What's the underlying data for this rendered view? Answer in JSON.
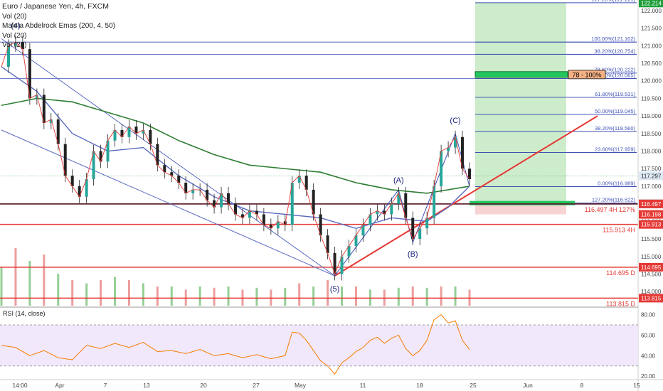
{
  "chart_data": {
    "type": "line",
    "title": "Euro / Japanese Yen, 4h, FXCM",
    "indicators": [
      "Vol (20)",
      "Maleta Abdelrock Emas (200, 4, 50)",
      "Vol (20)",
      "Vol (20)"
    ],
    "price_axis": {
      "range": [
        113.6,
        122.3
      ],
      "ticks": [
        "122.000",
        "121.500",
        "121.000",
        "120.500",
        "120.000",
        "119.500",
        "119.000",
        "118.500",
        "118.000",
        "117.500",
        "117.000",
        "116.500",
        "116.000",
        "115.500",
        "115.000",
        "114.500",
        "114.000"
      ],
      "tick_values": [
        122.0,
        121.5,
        121.0,
        120.5,
        120.0,
        119.5,
        119.0,
        118.5,
        118.0,
        117.5,
        117.0,
        116.5,
        116.0,
        115.5,
        115.0,
        114.5,
        114.0
      ]
    },
    "time_axis": {
      "labels": [
        "14:00",
        "Apr",
        "7",
        "13",
        "20",
        "27",
        "May",
        "11",
        "18",
        "25",
        "Jun",
        "8",
        "15"
      ]
    },
    "price_tags": [
      {
        "label": "122.214",
        "value": 122.214,
        "color": "#1e9e3a"
      },
      {
        "label": "117.297",
        "value": 117.297,
        "color": "#dde8f5"
      },
      {
        "label": "116.497",
        "value": 116.497,
        "color": "#4a4a4a"
      },
      {
        "label": "116.497",
        "value": 116.497,
        "color": "#e53935"
      },
      {
        "label": "116.198",
        "value": 116.198,
        "color": "#e53935"
      },
      {
        "label": "115.913",
        "value": 115.913,
        "color": "#e53935"
      },
      {
        "label": "114.695",
        "value": 114.695,
        "color": "#e53935"
      },
      {
        "label": "113.815",
        "value": 113.815,
        "color": "#e53935"
      }
    ],
    "horizontal_levels": [
      {
        "label": "116.497 4H 127%",
        "value": 116.497,
        "color": "#e53935"
      },
      {
        "label": "115.913 4H",
        "value": 115.913,
        "color": "#e53935"
      },
      {
        "label": "114.695 D",
        "value": 114.695,
        "color": "#e53935"
      },
      {
        "label": "113.815 D",
        "value": 113.815,
        "color": "#e53935"
      }
    ],
    "fib_levels": [
      {
        "label": "127.20%(122.221)",
        "value": 122.221
      },
      {
        "label": "100.00%(121.102)",
        "value": 121.102
      },
      {
        "label": "38.20%(120.754)",
        "value": 120.754
      },
      {
        "label": "78.60%(120.222)",
        "value": 120.222
      },
      {
        "label": "100.00%(120.065)",
        "value": 120.065
      },
      {
        "label": "61.80%(119.531)",
        "value": 119.531
      },
      {
        "label": "50.00%(119.045)",
        "value": 119.045
      },
      {
        "label": "38.20%(118.560)",
        "value": 118.56
      },
      {
        "label": "23.60%(117.959)",
        "value": 117.959
      },
      {
        "label": "0.00%(116.989)",
        "value": 116.989
      },
      {
        "label": "127.20%(116.522)",
        "value": 116.522
      }
    ],
    "target_box_label": "78 - 100%",
    "wave_labels": [
      {
        "label": "(4)",
        "x": 4,
        "price": 121.5
      },
      {
        "label": "(5)",
        "x": 94,
        "price": 114.0
      },
      {
        "label": "(A)",
        "x": 112,
        "price": 117.1
      },
      {
        "label": "(B)",
        "x": 116,
        "price": 115.0
      },
      {
        "label": "(C)",
        "x": 128,
        "price": 118.8
      }
    ],
    "price_series": [
      {
        "x": 0,
        "y": 120.4
      },
      {
        "x": 2,
        "y": 121.0
      },
      {
        "x": 4,
        "y": 121.1
      },
      {
        "x": 6,
        "y": 120.9
      },
      {
        "x": 8,
        "y": 119.5
      },
      {
        "x": 10,
        "y": 119.6
      },
      {
        "x": 12,
        "y": 118.8
      },
      {
        "x": 14,
        "y": 118.9
      },
      {
        "x": 16,
        "y": 118.2
      },
      {
        "x": 18,
        "y": 117.3
      },
      {
        "x": 20,
        "y": 117.0
      },
      {
        "x": 22,
        "y": 116.7
      },
      {
        "x": 24,
        "y": 117.2
      },
      {
        "x": 26,
        "y": 118.0
      },
      {
        "x": 28,
        "y": 117.7
      },
      {
        "x": 30,
        "y": 118.3
      },
      {
        "x": 32,
        "y": 118.6
      },
      {
        "x": 34,
        "y": 118.4
      },
      {
        "x": 36,
        "y": 118.7
      },
      {
        "x": 38,
        "y": 118.5
      },
      {
        "x": 40,
        "y": 118.6
      },
      {
        "x": 42,
        "y": 118.2
      },
      {
        "x": 44,
        "y": 117.6
      },
      {
        "x": 46,
        "y": 117.4
      },
      {
        "x": 48,
        "y": 117.3
      },
      {
        "x": 50,
        "y": 117.1
      },
      {
        "x": 52,
        "y": 116.8
      },
      {
        "x": 54,
        "y": 116.9
      },
      {
        "x": 56,
        "y": 116.9
      },
      {
        "x": 58,
        "y": 116.6
      },
      {
        "x": 60,
        "y": 116.4
      },
      {
        "x": 62,
        "y": 116.8
      },
      {
        "x": 64,
        "y": 116.5
      },
      {
        "x": 66,
        "y": 116.2
      },
      {
        "x": 68,
        "y": 116.1
      },
      {
        "x": 70,
        "y": 116.3
      },
      {
        "x": 72,
        "y": 116.2
      },
      {
        "x": 74,
        "y": 115.9
      },
      {
        "x": 76,
        "y": 115.8
      },
      {
        "x": 78,
        "y": 116.0
      },
      {
        "x": 80,
        "y": 115.9
      },
      {
        "x": 82,
        "y": 117.1
      },
      {
        "x": 84,
        "y": 117.3
      },
      {
        "x": 86,
        "y": 116.9
      },
      {
        "x": 88,
        "y": 116.2
      },
      {
        "x": 90,
        "y": 115.6
      },
      {
        "x": 92,
        "y": 115.1
      },
      {
        "x": 94,
        "y": 114.5
      },
      {
        "x": 96,
        "y": 115.0
      },
      {
        "x": 98,
        "y": 115.3
      },
      {
        "x": 100,
        "y": 115.6
      },
      {
        "x": 102,
        "y": 115.9
      },
      {
        "x": 104,
        "y": 116.2
      },
      {
        "x": 106,
        "y": 116.3
      },
      {
        "x": 108,
        "y": 116.2
      },
      {
        "x": 110,
        "y": 116.5
      },
      {
        "x": 112,
        "y": 116.8
      },
      {
        "x": 114,
        "y": 116.1
      },
      {
        "x": 116,
        "y": 115.5
      },
      {
        "x": 118,
        "y": 115.8
      },
      {
        "x": 120,
        "y": 116.1
      },
      {
        "x": 122,
        "y": 117.0
      },
      {
        "x": 124,
        "y": 118.0
      },
      {
        "x": 126,
        "y": 118.1
      },
      {
        "x": 128,
        "y": 118.4
      },
      {
        "x": 130,
        "y": 117.5
      },
      {
        "x": 132,
        "y": 117.2
      }
    ],
    "ema_series": [
      {
        "x": 0,
        "y": 119.3
      },
      {
        "x": 10,
        "y": 119.5
      },
      {
        "x": 20,
        "y": 119.4
      },
      {
        "x": 30,
        "y": 119.1
      },
      {
        "x": 40,
        "y": 118.8
      },
      {
        "x": 50,
        "y": 118.3
      },
      {
        "x": 60,
        "y": 117.9
      },
      {
        "x": 70,
        "y": 117.6
      },
      {
        "x": 80,
        "y": 117.5
      },
      {
        "x": 90,
        "y": 117.4
      },
      {
        "x": 100,
        "y": 117.1
      },
      {
        "x": 110,
        "y": 116.9
      },
      {
        "x": 120,
        "y": 116.8
      },
      {
        "x": 132,
        "y": 117.0
      }
    ],
    "ema_fast_series": [
      {
        "x": 0,
        "y": 120.4
      },
      {
        "x": 10,
        "y": 119.7
      },
      {
        "x": 20,
        "y": 118.5
      },
      {
        "x": 30,
        "y": 118.0
      },
      {
        "x": 40,
        "y": 118.1
      },
      {
        "x": 50,
        "y": 117.3
      },
      {
        "x": 60,
        "y": 116.7
      },
      {
        "x": 70,
        "y": 116.3
      },
      {
        "x": 80,
        "y": 116.2
      },
      {
        "x": 90,
        "y": 116.1
      },
      {
        "x": 100,
        "y": 115.8
      },
      {
        "x": 110,
        "y": 116.1
      },
      {
        "x": 120,
        "y": 116.0
      },
      {
        "x": 126,
        "y": 116.4
      },
      {
        "x": 132,
        "y": 117.0
      }
    ],
    "volume_series": [
      {
        "x": 0,
        "v": 0.6
      },
      {
        "x": 4,
        "v": 0.9
      },
      {
        "x": 8,
        "v": 0.7
      },
      {
        "x": 12,
        "v": 0.8
      },
      {
        "x": 16,
        "v": 0.5
      },
      {
        "x": 20,
        "v": 0.4
      },
      {
        "x": 24,
        "v": 0.35
      },
      {
        "x": 28,
        "v": 0.4
      },
      {
        "x": 32,
        "v": 0.45
      },
      {
        "x": 36,
        "v": 0.4
      },
      {
        "x": 40,
        "v": 0.35
      },
      {
        "x": 44,
        "v": 0.3
      },
      {
        "x": 48,
        "v": 0.3
      },
      {
        "x": 52,
        "v": 0.25
      },
      {
        "x": 56,
        "v": 0.3
      },
      {
        "x": 60,
        "v": 0.28
      },
      {
        "x": 64,
        "v": 0.3
      },
      {
        "x": 68,
        "v": 0.25
      },
      {
        "x": 72,
        "v": 0.28
      },
      {
        "x": 76,
        "v": 0.25
      },
      {
        "x": 80,
        "v": 0.28
      },
      {
        "x": 84,
        "v": 0.35
      },
      {
        "x": 88,
        "v": 0.3
      },
      {
        "x": 92,
        "v": 0.4
      },
      {
        "x": 96,
        "v": 0.3
      },
      {
        "x": 100,
        "v": 0.3
      },
      {
        "x": 104,
        "v": 0.25
      },
      {
        "x": 108,
        "v": 0.25
      },
      {
        "x": 112,
        "v": 0.28
      },
      {
        "x": 116,
        "v": 0.3
      },
      {
        "x": 120,
        "v": 0.28
      },
      {
        "x": 124,
        "v": 0.3
      },
      {
        "x": 128,
        "v": 0.3
      },
      {
        "x": 132,
        "v": 0.25
      }
    ],
    "rsi": {
      "title": "RSI (14, close)",
      "ticks": [
        "80.00",
        "60.00",
        "40.00",
        "20.00"
      ],
      "tick_values": [
        80,
        60,
        40,
        20
      ],
      "range": [
        18,
        86
      ],
      "bands": [
        30,
        70
      ],
      "series": [
        {
          "x": 0,
          "y": 50
        },
        {
          "x": 4,
          "y": 48
        },
        {
          "x": 8,
          "y": 40
        },
        {
          "x": 12,
          "y": 45
        },
        {
          "x": 16,
          "y": 38
        },
        {
          "x": 20,
          "y": 36
        },
        {
          "x": 24,
          "y": 50
        },
        {
          "x": 28,
          "y": 47
        },
        {
          "x": 32,
          "y": 52
        },
        {
          "x": 36,
          "y": 48
        },
        {
          "x": 40,
          "y": 53
        },
        {
          "x": 44,
          "y": 44
        },
        {
          "x": 48,
          "y": 45
        },
        {
          "x": 52,
          "y": 42
        },
        {
          "x": 56,
          "y": 46
        },
        {
          "x": 60,
          "y": 40
        },
        {
          "x": 64,
          "y": 42
        },
        {
          "x": 68,
          "y": 38
        },
        {
          "x": 72,
          "y": 41
        },
        {
          "x": 76,
          "y": 37
        },
        {
          "x": 80,
          "y": 40
        },
        {
          "x": 82,
          "y": 63
        },
        {
          "x": 84,
          "y": 62
        },
        {
          "x": 86,
          "y": 55
        },
        {
          "x": 88,
          "y": 45
        },
        {
          "x": 90,
          "y": 35
        },
        {
          "x": 92,
          "y": 30
        },
        {
          "x": 94,
          "y": 22
        },
        {
          "x": 96,
          "y": 33
        },
        {
          "x": 98,
          "y": 38
        },
        {
          "x": 100,
          "y": 44
        },
        {
          "x": 102,
          "y": 48
        },
        {
          "x": 104,
          "y": 55
        },
        {
          "x": 106,
          "y": 58
        },
        {
          "x": 108,
          "y": 52
        },
        {
          "x": 110,
          "y": 57
        },
        {
          "x": 112,
          "y": 60
        },
        {
          "x": 114,
          "y": 47
        },
        {
          "x": 116,
          "y": 40
        },
        {
          "x": 118,
          "y": 45
        },
        {
          "x": 120,
          "y": 55
        },
        {
          "x": 122,
          "y": 75
        },
        {
          "x": 124,
          "y": 80
        },
        {
          "x": 126,
          "y": 72
        },
        {
          "x": 128,
          "y": 74
        },
        {
          "x": 130,
          "y": 55
        },
        {
          "x": 132,
          "y": 46
        }
      ]
    }
  }
}
